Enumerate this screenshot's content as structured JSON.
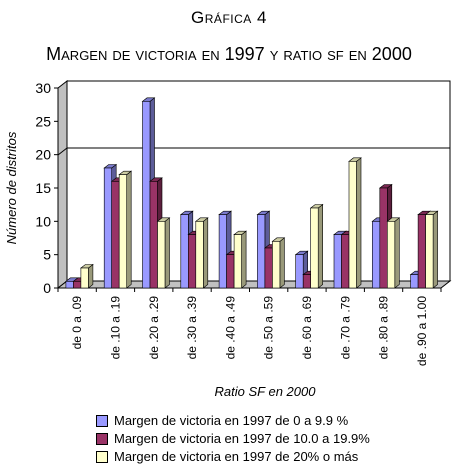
{
  "chart_data": {
    "type": "bar",
    "kicker": "Gráfica 4",
    "title": "Margen de victoria en 1997 y ratio sf en 2000",
    "xlabel": "Ratio SF en 2000",
    "ylabel": "Número de distritos",
    "categories": [
      "de 0 a .09",
      "de .10 a .19",
      "de .20 a .29",
      "de .30 a .39",
      "de .40 a .49",
      "de .50 a .59",
      "de .60 a .69",
      "de .70 a .79",
      "de .80 a .89",
      "de .90 a 1.00"
    ],
    "ylim": [
      0,
      30
    ],
    "yticks": [
      "0",
      "5",
      "10",
      "15",
      "20",
      "25",
      "30"
    ],
    "grid": "horizontal at 20",
    "legend_position": "bottom",
    "series": [
      {
        "name": "Margen de victoria en 1997 de 0 a 9.9 %",
        "color": "#9999ff",
        "values": [
          1,
          18,
          28,
          11,
          11,
          11,
          5,
          8,
          10,
          2
        ]
      },
      {
        "name": "Margen de victoria en 1997 de 10.0 a 19.9%",
        "color": "#993366",
        "values": [
          1,
          16,
          16,
          8,
          5,
          6,
          2,
          8,
          15,
          11
        ]
      },
      {
        "name": "Margen de victoria en 1997 de 20% o más",
        "color": "#ffffcc",
        "values": [
          3,
          17,
          10,
          10,
          8,
          7,
          12,
          19,
          10,
          11
        ]
      }
    ]
  }
}
